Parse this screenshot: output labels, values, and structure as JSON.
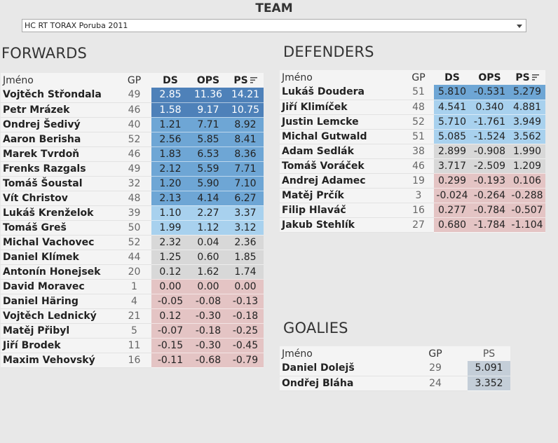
{
  "team": {
    "title": "TEAM",
    "selected": "HC RT TORAX Poruba 2011",
    "chevron_icon": "chevron-down-icon"
  },
  "colors": {
    "tier1": "#4e81b9",
    "tier2": "#6ea6d5",
    "tier3": "#a8d1ee",
    "neutral": "#d8d8d8",
    "negative": "#e4c4c4",
    "goalie": "#c4ced8"
  },
  "forwards": {
    "title": "FORWARDS",
    "headers": {
      "name": "Jméno",
      "gp": "GP",
      "ds": "DS",
      "ops": "OPS",
      "ps": "PS"
    },
    "rows": [
      {
        "name": "Vojtěch Střondala",
        "gp": "49",
        "ds": "2.85",
        "ops": "11.36",
        "ps": "14.21",
        "tier": "tier1"
      },
      {
        "name": "Petr Mrázek",
        "gp": "46",
        "ds": "1.58",
        "ops": "9.17",
        "ps": "10.75",
        "tier": "tier1"
      },
      {
        "name": "Ondrej Šedivý",
        "gp": "40",
        "ds": "1.21",
        "ops": "7.71",
        "ps": "8.92",
        "tier": "tier2"
      },
      {
        "name": "Aaron Berisha",
        "gp": "52",
        "ds": "2.56",
        "ops": "5.85",
        "ps": "8.41",
        "tier": "tier2"
      },
      {
        "name": "Marek Tvrdoň",
        "gp": "46",
        "ds": "1.83",
        "ops": "6.53",
        "ps": "8.36",
        "tier": "tier2"
      },
      {
        "name": "Frenks Razgals",
        "gp": "49",
        "ds": "2.12",
        "ops": "5.59",
        "ps": "7.71",
        "tier": "tier2"
      },
      {
        "name": "Tomáš Šoustal",
        "gp": "32",
        "ds": "1.20",
        "ops": "5.90",
        "ps": "7.10",
        "tier": "tier2"
      },
      {
        "name": "Vít Christov",
        "gp": "48",
        "ds": "2.13",
        "ops": "4.14",
        "ps": "6.27",
        "tier": "tier2"
      },
      {
        "name": "Lukáš Krenželok",
        "gp": "39",
        "ds": "1.10",
        "ops": "2.27",
        "ps": "3.37",
        "tier": "tier3"
      },
      {
        "name": "Tomáš Greš",
        "gp": "50",
        "ds": "1.99",
        "ops": "1.12",
        "ps": "3.12",
        "tier": "tier3"
      },
      {
        "name": "Michal Vachovec",
        "gp": "52",
        "ds": "2.32",
        "ops": "0.04",
        "ps": "2.36",
        "tier": "neutral"
      },
      {
        "name": "Daniel Klímek",
        "gp": "44",
        "ds": "1.25",
        "ops": "0.60",
        "ps": "1.85",
        "tier": "neutral"
      },
      {
        "name": "Antonín Honejsek",
        "gp": "20",
        "ds": "0.12",
        "ops": "1.62",
        "ps": "1.74",
        "tier": "neutral"
      },
      {
        "name": "David Moravec",
        "gp": "1",
        "ds": "0.00",
        "ops": "0.00",
        "ps": "0.00",
        "tier": "negative"
      },
      {
        "name": "Daniel Häring",
        "gp": "4",
        "ds": "-0.05",
        "ops": "-0.08",
        "ps": "-0.13",
        "tier": "negative"
      },
      {
        "name": "Vojtěch Lednický",
        "gp": "21",
        "ds": "0.12",
        "ops": "-0.30",
        "ps": "-0.18",
        "tier": "negative"
      },
      {
        "name": "Matěj Přibyl",
        "gp": "5",
        "ds": "-0.07",
        "ops": "-0.18",
        "ps": "-0.25",
        "tier": "negative"
      },
      {
        "name": "Jiří Brodek",
        "gp": "11",
        "ds": "-0.15",
        "ops": "-0.30",
        "ps": "-0.45",
        "tier": "negative"
      },
      {
        "name": "Maxim Vehovský",
        "gp": "16",
        "ds": "-0.11",
        "ops": "-0.68",
        "ps": "-0.79",
        "tier": "negative"
      }
    ]
  },
  "defenders": {
    "title": "DEFENDERS",
    "headers": {
      "name": "Jméno",
      "gp": "GP",
      "ds": "DS",
      "ops": "OPS",
      "ps": "PS"
    },
    "rows": [
      {
        "name": "Lukáš Doudera",
        "gp": "51",
        "ds": "5.810",
        "ops": "-0.531",
        "ps": "5.279",
        "tier": "tier2"
      },
      {
        "name": "Jiří Klimíček",
        "gp": "48",
        "ds": "4.541",
        "ops": "0.340",
        "ps": "4.881",
        "tier": "tier3"
      },
      {
        "name": "Justin Lemcke",
        "gp": "52",
        "ds": "5.710",
        "ops": "-1.761",
        "ps": "3.949",
        "tier": "tier3"
      },
      {
        "name": "Michal Gutwald",
        "gp": "51",
        "ds": "5.085",
        "ops": "-1.524",
        "ps": "3.562",
        "tier": "tier3"
      },
      {
        "name": "Adam Sedlák",
        "gp": "38",
        "ds": "2.899",
        "ops": "-0.908",
        "ps": "1.990",
        "tier": "neutral"
      },
      {
        "name": "Tomáš Voráček",
        "gp": "46",
        "ds": "3.717",
        "ops": "-2.509",
        "ps": "1.209",
        "tier": "neutral"
      },
      {
        "name": "Andrej Adamec",
        "gp": "19",
        "ds": "0.299",
        "ops": "-0.193",
        "ps": "0.106",
        "tier": "negative"
      },
      {
        "name": "Matěj Prčík",
        "gp": "3",
        "ds": "-0.024",
        "ops": "-0.264",
        "ps": "-0.288",
        "tier": "negative"
      },
      {
        "name": "Filip Hlaváč",
        "gp": "16",
        "ds": "0.277",
        "ops": "-0.784",
        "ps": "-0.507",
        "tier": "negative"
      },
      {
        "name": "Jakub Stehlík",
        "gp": "27",
        "ds": "0.680",
        "ops": "-1.784",
        "ps": "-1.104",
        "tier": "negative"
      }
    ]
  },
  "goalies": {
    "title": "GOALIES",
    "headers": {
      "name": "Jméno",
      "gp": "GP",
      "ps": "PS"
    },
    "rows": [
      {
        "name": "Daniel Dolejš",
        "gp": "29",
        "ps": "5.091"
      },
      {
        "name": "Ondřej Bláha",
        "gp": "24",
        "ps": "3.352"
      }
    ]
  },
  "sort_icon": "sort-descending-icon"
}
